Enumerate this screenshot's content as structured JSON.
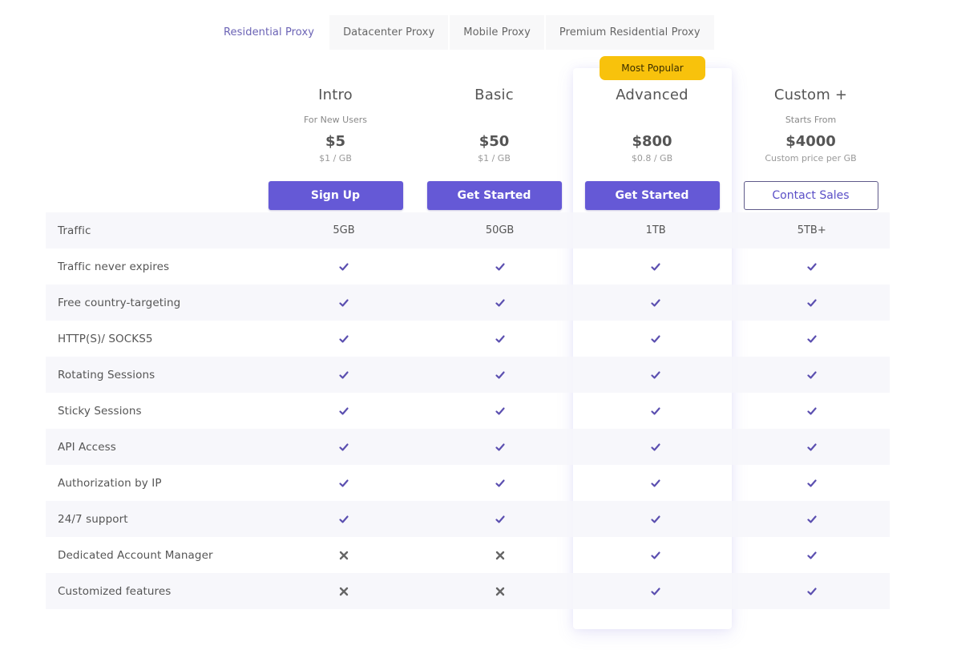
{
  "tabs": [
    {
      "label": "Residential Proxy",
      "active": true
    },
    {
      "label": "Datacenter Proxy",
      "active": false
    },
    {
      "label": "Mobile Proxy",
      "active": false
    },
    {
      "label": "Premium Residential Proxy",
      "active": false
    }
  ],
  "badge": "Most Popular",
  "plans": [
    {
      "name": "Intro",
      "subtitle": "For New Users",
      "price": "$5",
      "unit": "$1 / GB",
      "button": "Sign Up",
      "button_style": "solid"
    },
    {
      "name": "Basic",
      "subtitle": "",
      "price": "$50",
      "unit": "$1 / GB",
      "button": "Get Started",
      "button_style": "solid"
    },
    {
      "name": "Advanced",
      "subtitle": "",
      "price": "$800",
      "unit": "$0.8 / GB",
      "button": "Get Started",
      "button_style": "solid",
      "highlighted": true
    },
    {
      "name": "Custom +",
      "subtitle": "Starts From",
      "price": "$4000",
      "unit": "Custom price per GB",
      "button": "Contact Sales",
      "button_style": "outline"
    }
  ],
  "features": [
    {
      "label": "Traffic",
      "values": [
        "5GB",
        "50GB",
        "1TB",
        "5TB+"
      ]
    },
    {
      "label": "Traffic never expires",
      "values": [
        "check",
        "check",
        "check",
        "check"
      ]
    },
    {
      "label": "Free country-targeting",
      "values": [
        "check",
        "check",
        "check",
        "check"
      ]
    },
    {
      "label": "HTTP(S)/ SOCKS5",
      "values": [
        "check",
        "check",
        "check",
        "check"
      ]
    },
    {
      "label": "Rotating Sessions",
      "values": [
        "check",
        "check",
        "check",
        "check"
      ]
    },
    {
      "label": "Sticky Sessions",
      "values": [
        "check",
        "check",
        "check",
        "check"
      ]
    },
    {
      "label": "API Access",
      "values": [
        "check",
        "check",
        "check",
        "check"
      ]
    },
    {
      "label": "Authorization by IP",
      "values": [
        "check",
        "check",
        "check",
        "check"
      ]
    },
    {
      "label": "24/7 support",
      "values": [
        "check",
        "check",
        "check",
        "check"
      ]
    },
    {
      "label": "Dedicated Account Manager",
      "values": [
        "cross",
        "cross",
        "check",
        "check"
      ]
    },
    {
      "label": "Customized features",
      "values": [
        "cross",
        "cross",
        "check",
        "check"
      ]
    }
  ],
  "icons": {
    "check": "check-icon",
    "cross": "cross-icon"
  },
  "colors": {
    "accent": "#6559d6",
    "badge": "#f8c20c",
    "check": "#5b4fb0",
    "cross": "#666666",
    "active_tab": "#6b63b5"
  }
}
